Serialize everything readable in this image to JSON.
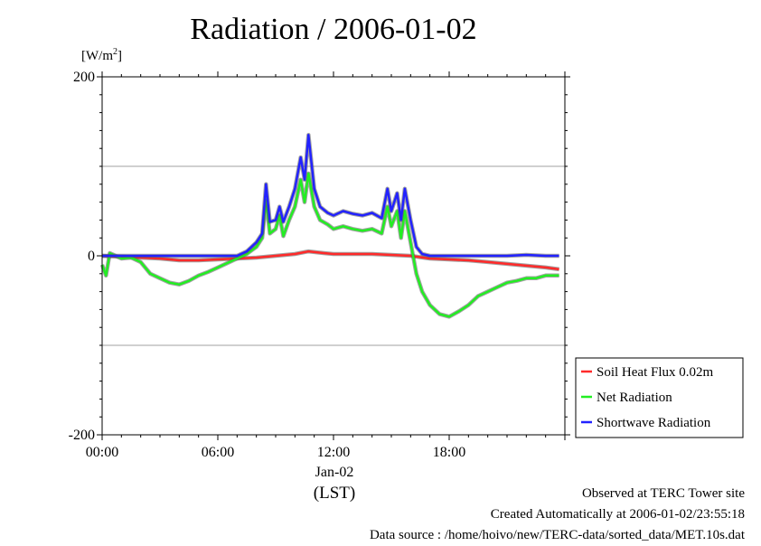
{
  "chart_data": {
    "type": "line",
    "title": "Radiation / 2006-01-02",
    "unit_label": "[W/m",
    "unit_sup": "2",
    "unit_close": "]",
    "ylim": [
      -200,
      200
    ],
    "y_ticks": [
      {
        "value": 200,
        "label": "200"
      },
      {
        "value": 0,
        "label": "0"
      },
      {
        "value": -200,
        "label": "-200"
      }
    ],
    "y_gridlines": [
      100,
      -100
    ],
    "grid": true,
    "xlim": [
      0,
      24
    ],
    "x_ticks": [
      {
        "value": 0,
        "label": "00:00"
      },
      {
        "value": 6,
        "label": "06:00"
      },
      {
        "value": 12,
        "label": "12:00"
      },
      {
        "value": 18,
        "label": "18:00"
      }
    ],
    "x_date_label": "Jan-02",
    "x_axis_label": "(LST)",
    "legend_position": "bottom-right",
    "series": [
      {
        "name": "Soil Heat Flux 0.02m",
        "color": "#ff2a2a",
        "points": [
          [
            0,
            0
          ],
          [
            1,
            -1
          ],
          [
            2,
            -2
          ],
          [
            3,
            -3
          ],
          [
            4,
            -5
          ],
          [
            5,
            -5
          ],
          [
            6,
            -4
          ],
          [
            7,
            -3
          ],
          [
            8,
            -2
          ],
          [
            9,
            0
          ],
          [
            10,
            2
          ],
          [
            10.7,
            5
          ],
          [
            11.5,
            3
          ],
          [
            12,
            2
          ],
          [
            13,
            2
          ],
          [
            14,
            2
          ],
          [
            15,
            1
          ],
          [
            16,
            0
          ],
          [
            17,
            -3
          ],
          [
            18,
            -4
          ],
          [
            19,
            -5
          ],
          [
            20,
            -7
          ],
          [
            21,
            -9
          ],
          [
            22,
            -11
          ],
          [
            23,
            -13
          ],
          [
            23.7,
            -15
          ]
        ]
      },
      {
        "name": "Net Radiation",
        "color": "#22ee22",
        "points": [
          [
            0,
            -10
          ],
          [
            0.2,
            -22
          ],
          [
            0.4,
            3
          ],
          [
            0.7,
            0
          ],
          [
            1,
            -3
          ],
          [
            1.5,
            -2
          ],
          [
            2,
            -7
          ],
          [
            2.5,
            -20
          ],
          [
            3,
            -25
          ],
          [
            3.5,
            -30
          ],
          [
            4,
            -32
          ],
          [
            4.5,
            -28
          ],
          [
            5,
            -22
          ],
          [
            5.5,
            -18
          ],
          [
            6,
            -13
          ],
          [
            6.5,
            -8
          ],
          [
            7,
            -3
          ],
          [
            7.5,
            2
          ],
          [
            8,
            10
          ],
          [
            8.3,
            20
          ],
          [
            8.5,
            62
          ],
          [
            8.7,
            25
          ],
          [
            9,
            30
          ],
          [
            9.2,
            45
          ],
          [
            9.4,
            22
          ],
          [
            9.7,
            40
          ],
          [
            10,
            55
          ],
          [
            10.3,
            85
          ],
          [
            10.5,
            60
          ],
          [
            10.7,
            92
          ],
          [
            11,
            55
          ],
          [
            11.3,
            40
          ],
          [
            11.7,
            35
          ],
          [
            12,
            30
          ],
          [
            12.5,
            33
          ],
          [
            13,
            30
          ],
          [
            13.5,
            28
          ],
          [
            14,
            30
          ],
          [
            14.5,
            25
          ],
          [
            14.8,
            55
          ],
          [
            15,
            33
          ],
          [
            15.3,
            50
          ],
          [
            15.5,
            20
          ],
          [
            15.7,
            50
          ],
          [
            16,
            15
          ],
          [
            16.3,
            -20
          ],
          [
            16.6,
            -40
          ],
          [
            17,
            -55
          ],
          [
            17.5,
            -65
          ],
          [
            18,
            -68
          ],
          [
            18.5,
            -62
          ],
          [
            19,
            -55
          ],
          [
            19.5,
            -45
          ],
          [
            20,
            -40
          ],
          [
            20.5,
            -35
          ],
          [
            21,
            -30
          ],
          [
            21.5,
            -28
          ],
          [
            22,
            -25
          ],
          [
            22.5,
            -25
          ],
          [
            23,
            -22
          ],
          [
            23.7,
            -22
          ]
        ]
      },
      {
        "name": "Shortwave Radiation",
        "color": "#2222ff",
        "points": [
          [
            0,
            0
          ],
          [
            1,
            0
          ],
          [
            2,
            0
          ],
          [
            3,
            0
          ],
          [
            4,
            0
          ],
          [
            5,
            0
          ],
          [
            6,
            0
          ],
          [
            7,
            0
          ],
          [
            7.5,
            5
          ],
          [
            8,
            15
          ],
          [
            8.3,
            25
          ],
          [
            8.5,
            80
          ],
          [
            8.7,
            38
          ],
          [
            9,
            40
          ],
          [
            9.2,
            55
          ],
          [
            9.4,
            38
          ],
          [
            9.7,
            55
          ],
          [
            10,
            75
          ],
          [
            10.3,
            110
          ],
          [
            10.5,
            85
          ],
          [
            10.7,
            135
          ],
          [
            11,
            75
          ],
          [
            11.3,
            55
          ],
          [
            11.7,
            48
          ],
          [
            12,
            45
          ],
          [
            12.5,
            50
          ],
          [
            13,
            47
          ],
          [
            13.5,
            45
          ],
          [
            14,
            48
          ],
          [
            14.5,
            42
          ],
          [
            14.8,
            75
          ],
          [
            15,
            50
          ],
          [
            15.3,
            70
          ],
          [
            15.5,
            40
          ],
          [
            15.7,
            75
          ],
          [
            16,
            40
          ],
          [
            16.3,
            10
          ],
          [
            16.6,
            2
          ],
          [
            17,
            0
          ],
          [
            18,
            0
          ],
          [
            19,
            0
          ],
          [
            20,
            0
          ],
          [
            21,
            0
          ],
          [
            22,
            1
          ],
          [
            23,
            0
          ],
          [
            23.7,
            0
          ]
        ]
      }
    ]
  },
  "footer": {
    "line1": "Observed at TERC Tower site",
    "line2": "Created Automatically at 2006-01-02/23:55:18",
    "line3": "Data source : /home/hoivo/new/TERC-data/sorted_data/MET.10s.dat"
  }
}
